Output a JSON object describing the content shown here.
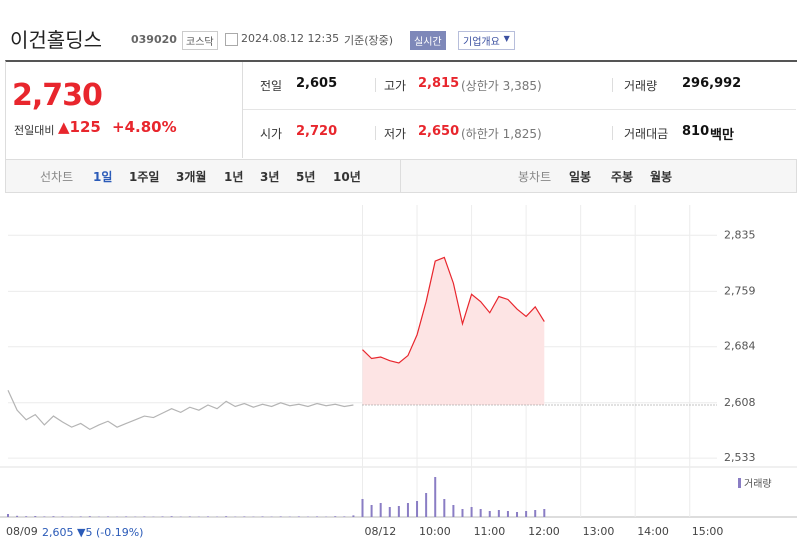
{
  "header": {
    "title": "이건홀딩스",
    "code": "039020",
    "market": "코스닥",
    "datetime": "2024.08.12 12:35",
    "basis": "기준(장중)",
    "realtime": "실시간",
    "company_button": "기업개요"
  },
  "summary": {
    "price": "2,730",
    "change_label": "전일대비",
    "change": "▲125",
    "change_pct": "+4.80%",
    "items": [
      {
        "label": "전일",
        "value": "2,605"
      },
      {
        "label": "고가",
        "value": "2,815",
        "note": "(상한가 3,385)"
      },
      {
        "label": "거래량",
        "value": "296,992"
      },
      {
        "label": "시가",
        "value": "2,720"
      },
      {
        "label": "저가",
        "value": "2,650",
        "note": "(하한가 1,825)"
      },
      {
        "label": "거래대금",
        "value": "810",
        "unit": "백만"
      }
    ]
  },
  "tabs": {
    "line_label": "선차트",
    "line_tabs": [
      "1일",
      "1주일",
      "3개월",
      "1년",
      "3년",
      "5년",
      "10년"
    ],
    "candle_label": "봉차트",
    "candle_tabs": [
      "일봉",
      "주봉",
      "월봉"
    ]
  },
  "prev_day": {
    "close": "2,605",
    "change": "▼5",
    "pct": "(-0.19%)"
  },
  "chart_data": {
    "type": "line",
    "categories": [
      "08/09",
      null,
      null,
      null,
      null,
      null,
      null,
      null,
      null,
      null,
      null,
      null,
      null,
      null,
      null,
      null,
      null,
      null,
      null,
      null,
      null,
      null,
      null,
      null,
      null,
      null,
      null,
      null,
      null,
      null,
      null,
      null,
      null,
      null,
      null,
      null,
      null,
      null,
      null,
      "08/12",
      null,
      null,
      null,
      null,
      null,
      "10:00",
      null,
      null,
      null,
      null,
      null,
      "11:00",
      null,
      null,
      null,
      null,
      null,
      "12:00",
      null,
      null,
      null,
      null,
      null,
      "13:00",
      null,
      null,
      null,
      null,
      null,
      "14:00",
      null,
      null,
      null,
      null,
      null,
      "15:00",
      null,
      null,
      null
    ],
    "series": [
      {
        "color": "#b4b4b4",
        "values": [
          2625,
          2598,
          2585,
          2592,
          2578,
          2590,
          2582,
          2575,
          2580,
          2572,
          2578,
          2583,
          2575,
          2580,
          2585,
          2590,
          2588,
          2594,
          2600,
          2595,
          2602,
          2598,
          2605,
          2600,
          2610,
          2603,
          2607,
          2602,
          2606,
          2603,
          2608,
          2604,
          2606,
          2603,
          2607,
          2604,
          2606,
          2603,
          2605,
          null,
          null,
          null,
          null,
          null,
          null,
          null,
          null,
          null,
          null,
          null,
          null,
          null,
          null,
          null,
          null,
          null,
          null,
          null,
          null,
          null,
          null,
          null,
          null,
          null,
          null,
          null,
          null,
          null,
          null,
          null,
          null,
          null,
          null,
          null,
          null,
          null,
          null,
          null,
          null
        ]
      },
      {
        "color": "#e8262d",
        "area_color": "#fde4e4",
        "values": [
          null,
          null,
          null,
          null,
          null,
          null,
          null,
          null,
          null,
          null,
          null,
          null,
          null,
          null,
          null,
          null,
          null,
          null,
          null,
          null,
          null,
          null,
          null,
          null,
          null,
          null,
          null,
          null,
          null,
          null,
          null,
          null,
          null,
          null,
          null,
          null,
          null,
          null,
          null,
          2680,
          2668,
          2670,
          2665,
          2662,
          2672,
          2700,
          2745,
          2800,
          2805,
          2770,
          2715,
          2755,
          2745,
          2730,
          2752,
          2748,
          2735,
          2725,
          2738,
          2718,
          null,
          null,
          null,
          null,
          null,
          null,
          null,
          null,
          null,
          null,
          null,
          null,
          null,
          null,
          null,
          null,
          null,
          null,
          null
        ]
      },
      {
        "name": "거래량",
        "color": "#8a7dc4",
        "axis": "y2",
        "values": [
          1500,
          600,
          400,
          500,
          300,
          400,
          300,
          200,
          300,
          400,
          200,
          300,
          200,
          300,
          200,
          300,
          200,
          300,
          400,
          200,
          300,
          200,
          300,
          200,
          400,
          200,
          300,
          200,
          300,
          200,
          300,
          200,
          300,
          200,
          300,
          200,
          400,
          300,
          800,
          9000,
          6000,
          7000,
          5000,
          5500,
          7000,
          8000,
          12000,
          20000,
          9000,
          6000,
          4000,
          5000,
          4000,
          3000,
          3500,
          3000,
          2500,
          3000,
          3500,
          4000,
          null,
          null,
          null,
          null,
          null,
          null,
          null,
          null,
          null,
          null,
          null,
          null,
          null,
          null,
          null,
          null,
          null,
          null,
          null
        ]
      }
    ],
    "reference_line": 2605,
    "ylim": [
      2521,
      2876
    ],
    "yticks": [
      {
        "value": 2533,
        "label": "2,533"
      },
      {
        "value": 2608,
        "label": "2,608"
      },
      {
        "value": 2684,
        "label": "2,684"
      },
      {
        "value": 2759,
        "label": "2,759"
      },
      {
        "value": 2835,
        "label": "2,835"
      }
    ],
    "y2lim": [
      0,
      20000
    ],
    "grid": true
  }
}
